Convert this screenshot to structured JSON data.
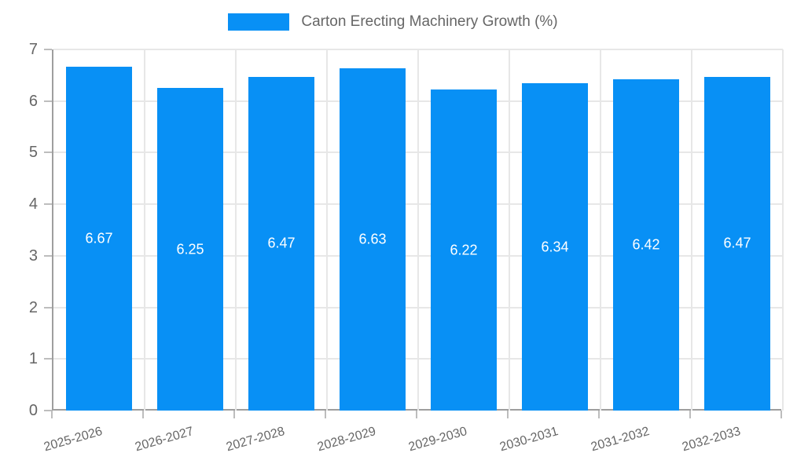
{
  "legend": {
    "label": "Carton Erecting Machinery Growth (%)"
  },
  "colors": {
    "bar": "#0890F5",
    "grid": "#e7e7e7",
    "axis": "#9e9e9e",
    "tick_mark": "#bdbdbd",
    "tick_text": "#666666",
    "value_label": "#ffffff",
    "background": "#ffffff"
  },
  "chart_data": {
    "type": "bar",
    "title": "Carton Erecting Machinery Growth (%)",
    "categories": [
      "2025-2026",
      "2026-2027",
      "2027-2028",
      "2028-2029",
      "2029-2030",
      "2030-2031",
      "2031-2032",
      "2032-2033"
    ],
    "values": [
      6.67,
      6.25,
      6.47,
      6.63,
      6.22,
      6.34,
      6.42,
      6.47
    ],
    "series_name": "Carton Erecting Machinery Growth (%)",
    "xlabel": "",
    "ylabel": "",
    "ylim": [
      0,
      7
    ],
    "ytick_step": 1,
    "grid": true,
    "legend_position": "top",
    "value_labels": "inside-center",
    "value_label_format": "0.00",
    "x_label_rotation_deg": -16
  }
}
